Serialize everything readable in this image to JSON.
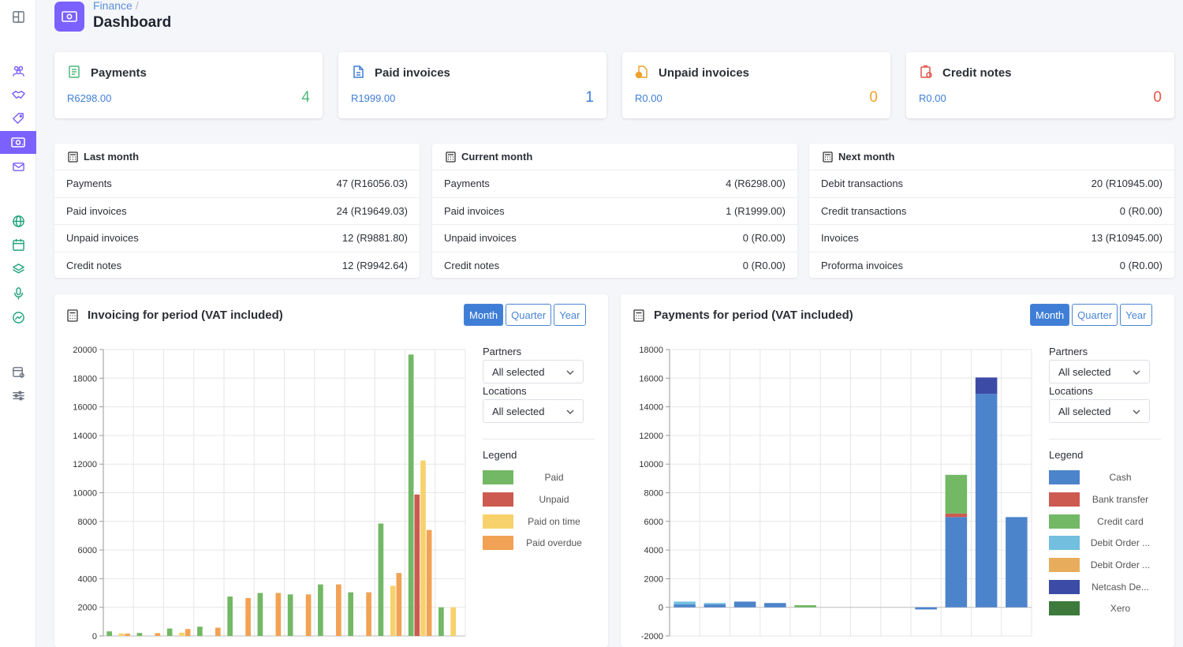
{
  "breadcrumb": {
    "section": "Finance",
    "sep": "/"
  },
  "page_title": "Dashboard",
  "kpis": [
    {
      "title": "Payments",
      "amount": "R6298.00",
      "count": "4",
      "color": "#4cb87a",
      "icon": "receipt-icon"
    },
    {
      "title": "Paid invoices",
      "amount": "R1999.00",
      "count": "1",
      "color": "#3f7ed6",
      "icon": "document-icon"
    },
    {
      "title": "Unpaid invoices",
      "amount": "R0.00",
      "count": "0",
      "color": "#f0a02c",
      "icon": "unpaid-document-icon"
    },
    {
      "title": "Credit notes",
      "amount": "R0.00",
      "count": "0",
      "color": "#e05546",
      "icon": "credit-note-icon"
    }
  ],
  "summaries": [
    {
      "title": "Last month",
      "rows": [
        {
          "label": "Payments",
          "value": "47 (R16056.03)"
        },
        {
          "label": "Paid invoices",
          "value": "24 (R19649.03)"
        },
        {
          "label": "Unpaid invoices",
          "value": "12 (R9881.80)"
        },
        {
          "label": "Credit notes",
          "value": "12 (R9942.64)"
        }
      ]
    },
    {
      "title": "Current month",
      "rows": [
        {
          "label": "Payments",
          "value": "4 (R6298.00)"
        },
        {
          "label": "Paid invoices",
          "value": "1 (R1999.00)"
        },
        {
          "label": "Unpaid invoices",
          "value": "0 (R0.00)"
        },
        {
          "label": "Credit notes",
          "value": "0 (R0.00)"
        }
      ]
    },
    {
      "title": "Next month",
      "rows": [
        {
          "label": "Debit transactions",
          "value": "20 (R10945.00)"
        },
        {
          "label": "Credit transactions",
          "value": "0 (R0.00)"
        },
        {
          "label": "Invoices",
          "value": "13 (R10945.00)"
        },
        {
          "label": "Proforma invoices",
          "value": "0 (R0.00)"
        }
      ]
    }
  ],
  "period_buttons": [
    "Month",
    "Quarter",
    "Year"
  ],
  "filters": {
    "partners_label": "Partners",
    "locations_label": "Locations",
    "selected_value": "All selected",
    "legend_label": "Legend"
  },
  "invoicing": {
    "title": "Invoicing for period (VAT included)"
  },
  "payments": {
    "title": "Payments for period (VAT included)"
  },
  "chart_data": [
    {
      "type": "bar",
      "title": "Invoicing for period (VAT included)",
      "ylim": [
        0,
        20000
      ],
      "yticks": [
        0,
        2000,
        4000,
        6000,
        8000,
        10000,
        12000,
        14000,
        16000,
        18000,
        20000
      ],
      "series": [
        {
          "name": "Paid",
          "color": "#72b865",
          "values": [
            320,
            210,
            520,
            650,
            2750,
            3000,
            2900,
            3600,
            3050,
            7850,
            19650,
            2000
          ]
        },
        {
          "name": "Unpaid",
          "color": "#cc5a50",
          "values": [
            0,
            0,
            0,
            0,
            0,
            0,
            0,
            0,
            0,
            0,
            9880,
            0
          ]
        },
        {
          "name": "Paid on time",
          "color": "#f7d16b",
          "values": [
            180,
            0,
            230,
            0,
            0,
            0,
            0,
            0,
            0,
            3500,
            12250,
            2000
          ]
        },
        {
          "name": "Paid overdue",
          "color": "#f2a254",
          "values": [
            160,
            200,
            480,
            580,
            2650,
            3000,
            2900,
            3600,
            3050,
            4400,
            7400,
            0
          ]
        }
      ]
    },
    {
      "type": "bar",
      "stacked": true,
      "title": "Payments for period (VAT included)",
      "ylim": [
        -2000,
        18000
      ],
      "yticks": [
        -2000,
        0,
        2000,
        4000,
        6000,
        8000,
        10000,
        12000,
        14000,
        16000,
        18000
      ],
      "series": [
        {
          "name": "Cash",
          "color": "#4c84cc",
          "values": [
            200,
            200,
            400,
            300,
            0,
            0,
            0,
            0,
            -150,
            6300,
            14900,
            6300
          ]
        },
        {
          "name": "Bank transfer",
          "color": "#cc5a50",
          "values": [
            0,
            0,
            0,
            0,
            0,
            0,
            0,
            0,
            0,
            250,
            0,
            0
          ]
        },
        {
          "name": "Credit card",
          "color": "#72b865",
          "values": [
            0,
            0,
            0,
            0,
            150,
            0,
            0,
            0,
            0,
            2700,
            0,
            0
          ]
        },
        {
          "name": "Debit Order ...",
          "color": "#72bfdf",
          "values": [
            200,
            100,
            0,
            0,
            0,
            0,
            0,
            0,
            0,
            0,
            0,
            0
          ]
        },
        {
          "name": "Debit Order ...",
          "color": "#e8ad5c",
          "values": [
            0,
            0,
            0,
            0,
            0,
            0,
            0,
            0,
            0,
            0,
            0,
            0
          ]
        },
        {
          "name": "Netcash De...",
          "color": "#3b4ba6",
          "values": [
            0,
            0,
            0,
            0,
            0,
            0,
            0,
            0,
            0,
            0,
            1150,
            0
          ]
        },
        {
          "name": "Xero",
          "color": "#3d7a3b",
          "values": [
            0,
            0,
            0,
            0,
            0,
            0,
            0,
            0,
            0,
            0,
            0,
            0
          ]
        }
      ]
    }
  ]
}
